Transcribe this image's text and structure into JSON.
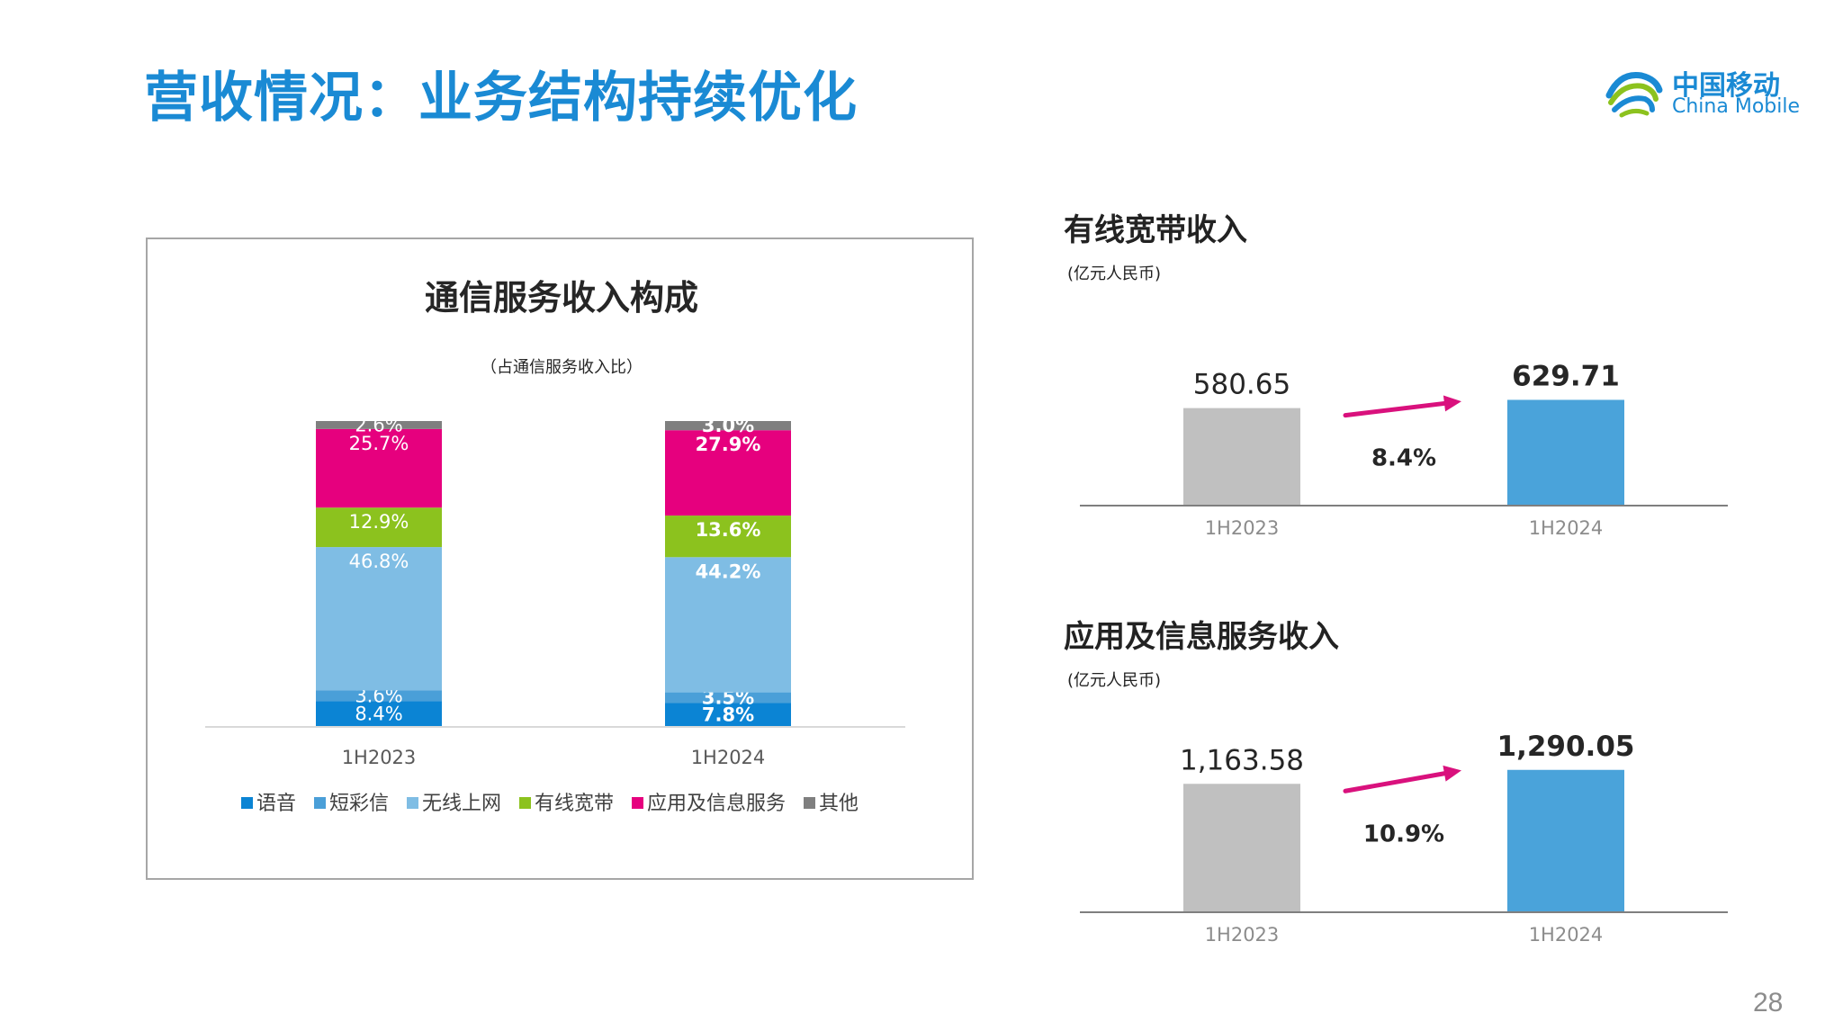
{
  "header": {
    "title": "营收情况：业务结构持续优化",
    "logo_cn": "中国移动",
    "logo_en": "China Mobile",
    "brand_color": "#1a8ad4"
  },
  "page_number": "28",
  "chart_data": [
    {
      "type": "bar",
      "stacked": true,
      "title": "通信服务收入构成",
      "subtitle": "（占通信服务收入比）",
      "categories": [
        "1H2023",
        "1H2024"
      ],
      "series": [
        {
          "name": "语音",
          "color": "#0b84d4",
          "values": [
            8.4,
            7.8
          ],
          "labels": [
            "8.4%",
            "7.8%"
          ]
        },
        {
          "name": "短彩信",
          "color": "#4a9fd8",
          "values": [
            3.6,
            3.5
          ],
          "labels": [
            "3.6%",
            "3.5%"
          ]
        },
        {
          "name": "无线上网",
          "color": "#7fbde4",
          "values": [
            46.8,
            44.2
          ],
          "labels": [
            "46.8%",
            "44.2%"
          ]
        },
        {
          "name": "有线宽带",
          "color": "#8cc21e",
          "values": [
            12.9,
            13.6
          ],
          "labels": [
            "12.9%",
            "13.6%"
          ]
        },
        {
          "name": "应用及信息服务",
          "color": "#e6007e",
          "values": [
            25.7,
            27.9
          ],
          "labels": [
            "25.7%",
            "27.9%"
          ]
        },
        {
          "name": "其他",
          "color": "#7f7f7f",
          "values": [
            2.6,
            3.0
          ],
          "labels": [
            "2.6%",
            "3.0%"
          ]
        }
      ],
      "legend": "bottom"
    },
    {
      "type": "bar",
      "title": "有线宽带收入",
      "unit": "(亿元人民币)",
      "categories": [
        "1H2023",
        "1H2024"
      ],
      "values": [
        580.65,
        629.71
      ],
      "value_labels": [
        "580.65",
        "629.71"
      ],
      "colors": [
        "#c0c0c0",
        "#4aa3da"
      ],
      "growth": "8.4%",
      "ylim": [
        0,
        750
      ]
    },
    {
      "type": "bar",
      "title": "应用及信息服务收入",
      "unit": "(亿元人民币)",
      "categories": [
        "1H2023",
        "1H2024"
      ],
      "values": [
        1163.58,
        1290.05
      ],
      "value_labels": [
        "1,163.58",
        "1,290.05"
      ],
      "colors": [
        "#c0c0c0",
        "#4aa3da"
      ],
      "growth": "10.9%",
      "ylim": [
        0,
        1500
      ]
    }
  ]
}
